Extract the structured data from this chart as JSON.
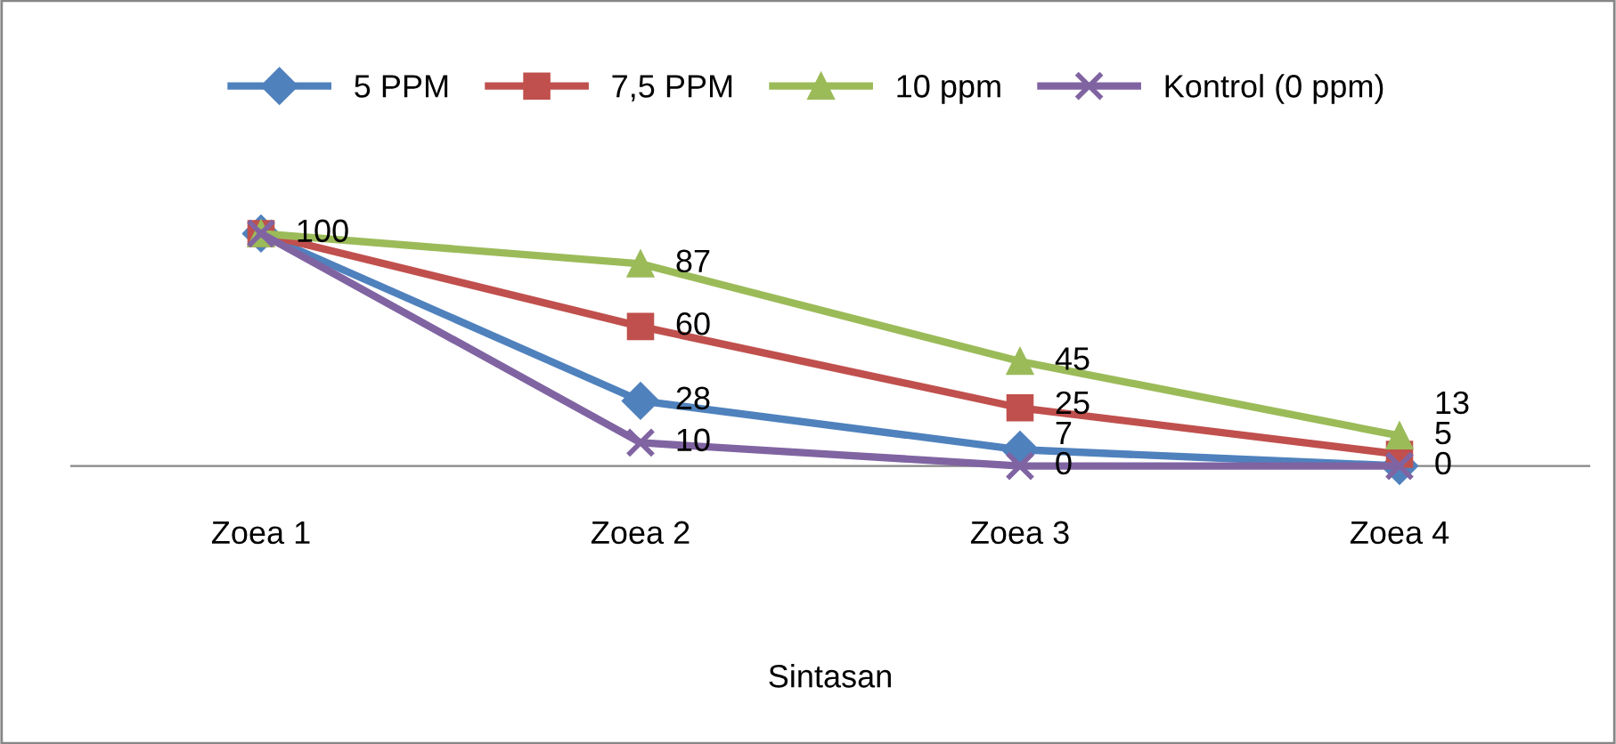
{
  "chart_data": {
    "type": "line",
    "xlabel": "Sintasan",
    "categories": [
      "Zoea 1",
      "Zoea 2",
      "Zoea 3",
      "Zoea 4"
    ],
    "series": [
      {
        "name": "5 PPM",
        "color": "#4f81bd",
        "marker": "diamond",
        "values": [
          100,
          28,
          7,
          0
        ],
        "value_labels": [
          "100",
          "28",
          "7",
          "0"
        ]
      },
      {
        "name": "7,5 PPM",
        "color": "#c0504d",
        "marker": "square",
        "values": [
          100,
          60,
          25,
          5
        ],
        "value_labels": [
          null,
          "60",
          "25",
          "5"
        ]
      },
      {
        "name": "10 ppm",
        "color": "#9bbb59",
        "marker": "triangle",
        "values": [
          100,
          87,
          45,
          13
        ],
        "value_labels": [
          null,
          "87",
          "45",
          "13"
        ]
      },
      {
        "name": "Kontrol (0 ppm)",
        "color": "#8064a2",
        "marker": "cross",
        "values": [
          100,
          10,
          0,
          0
        ],
        "value_labels": [
          null,
          "10",
          "0",
          null
        ]
      }
    ],
    "tick_labels": "x",
    "legend": "top",
    "grid": false,
    "line_style": "solid"
  }
}
